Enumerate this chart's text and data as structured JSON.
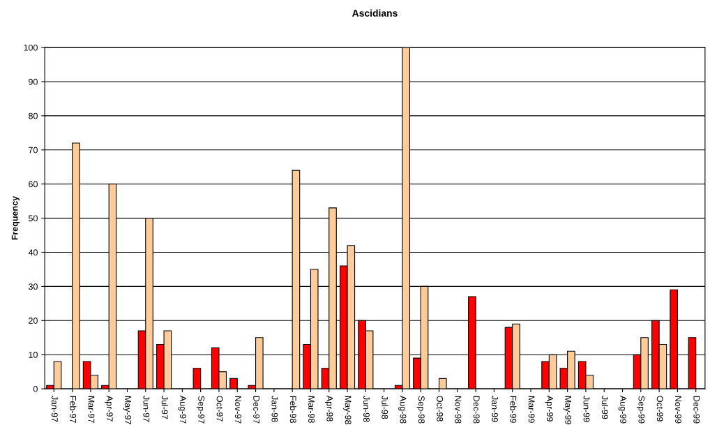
{
  "chart_data": {
    "type": "bar",
    "title": "Ascidians",
    "ylabel": "Frequency",
    "categories": [
      "Jan-97",
      "Feb-97",
      "Mar-97",
      "Apr-97",
      "May-97",
      "Jun-97",
      "Jul-97",
      "Aug-97",
      "Sep-97",
      "Oct-97",
      "Nov-97",
      "Dec-97",
      "Jan-98",
      "Feb-98",
      "Mar-98",
      "Apr-98",
      "May-98",
      "Jun-98",
      "Jul-98",
      "Aug-98",
      "Sep-98",
      "Oct-98",
      "Nov-98",
      "Dec-98",
      "Jan-99",
      "Feb-99",
      "Mar-99",
      "Apr-99",
      "May-99",
      "Jun-99",
      "Jul-99",
      "Aug-99",
      "Sep-99",
      "Oct-99",
      "Nov-99",
      "Dec-99"
    ],
    "series": [
      {
        "color": "#ff0000",
        "values": [
          1,
          null,
          8,
          1,
          null,
          17,
          13,
          null,
          6,
          12,
          3,
          1,
          null,
          null,
          13,
          6,
          36,
          20,
          null,
          1,
          9,
          null,
          null,
          27,
          null,
          18,
          null,
          8,
          6,
          8,
          null,
          null,
          10,
          20,
          29,
          15
        ]
      },
      {
        "color": "#ffcc99",
        "values": [
          8,
          72,
          4,
          60,
          null,
          50,
          17,
          null,
          null,
          5,
          null,
          15,
          null,
          64,
          35,
          53,
          42,
          17,
          null,
          100,
          30,
          3,
          null,
          null,
          null,
          19,
          null,
          10,
          11,
          4,
          null,
          null,
          15,
          13,
          null,
          null
        ]
      }
    ],
    "ylim": [
      0,
      100
    ],
    "yticks": [
      0,
      10,
      20,
      30,
      40,
      50,
      60,
      70,
      80,
      90,
      100
    ],
    "grid": "y"
  }
}
